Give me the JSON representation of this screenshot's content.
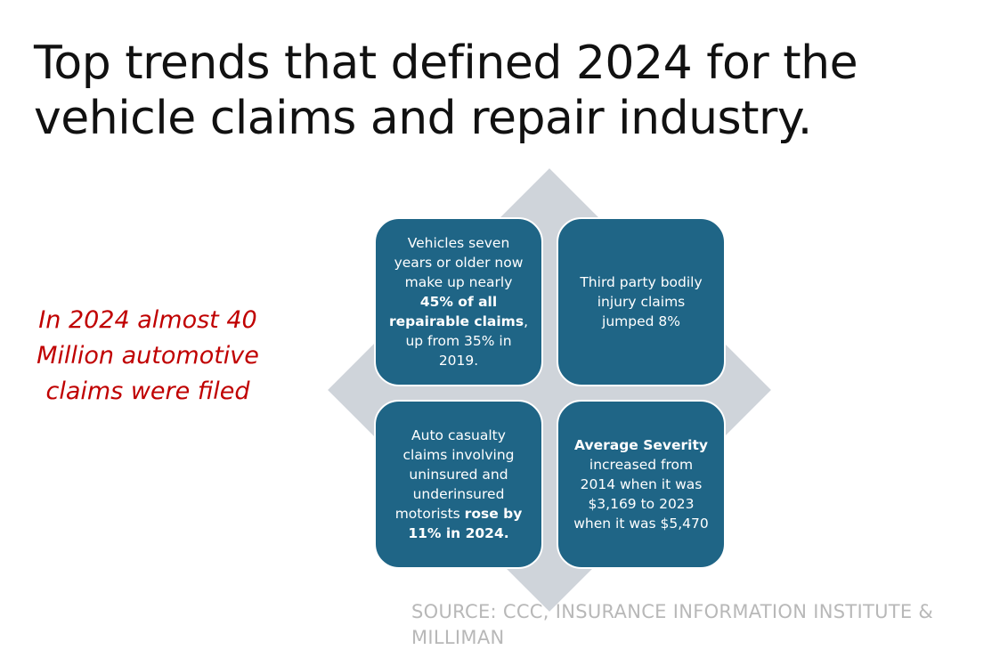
{
  "title": "Top trends that defined 2024 for the vehicle claims and repair industry.",
  "callout": "In 2024 almost 40 Million automotive claims were filed",
  "boxes": [
    {
      "pre": "Vehicles seven years or older now make up nearly ",
      "bold": "45% of all repairable claims",
      "post": ", up from 35% in 2019."
    },
    {
      "pre": "Third party bodily injury claims jumped 8%",
      "bold": "",
      "post": ""
    },
    {
      "pre": "Auto casualty claims involving uninsured and underinsured motorists ",
      "bold": "rose by 11% in 2024.",
      "post": ""
    },
    {
      "pre": "",
      "bold": "Average Severity",
      "post": " increased from 2014 when it was $3,169 to 2023 when it was $5,470"
    }
  ],
  "source": "SOURCE: CCC, INSURANCE INFORMATION INSTITUTE & MILLIMAN",
  "colors": {
    "box_fill": "#1f6586",
    "diamond_fill": "#cfd4da",
    "callout_text": "#c00000",
    "source_text": "#b8b8b8"
  }
}
